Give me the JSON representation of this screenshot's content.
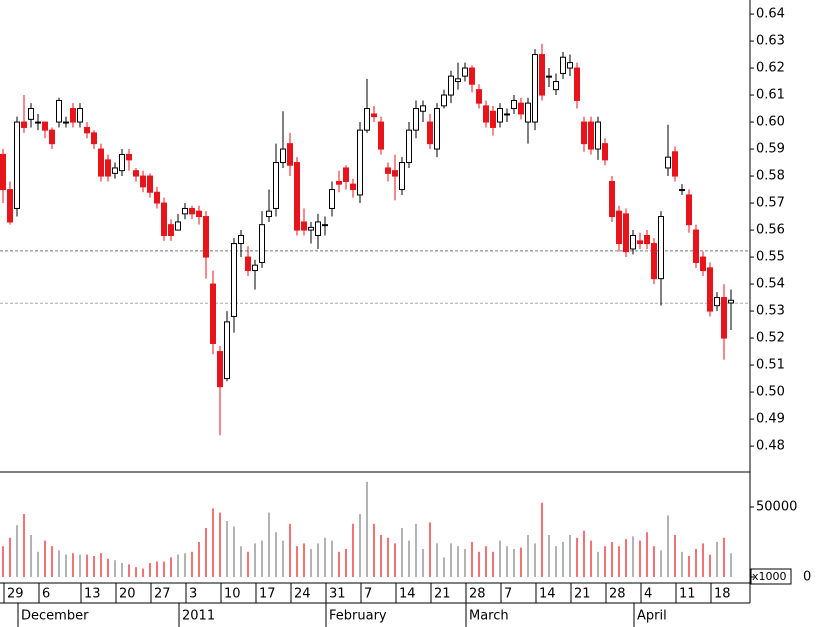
{
  "chart_data": {
    "type": "candlestick",
    "open": [
      0.588,
      0.575,
      0.568,
      0.6,
      0.601,
      0.6,
      0.6,
      0.597,
      0.6,
      0.6,
      0.605,
      0.6,
      0.598,
      0.596,
      0.59,
      0.586,
      0.581,
      0.582,
      0.588,
      0.582,
      0.58,
      0.58,
      0.574,
      0.57,
      0.562,
      0.56,
      0.566,
      0.568,
      0.567,
      0.565,
      0.54,
      0.515,
      0.505,
      0.528,
      0.555,
      0.55,
      0.545,
      0.548,
      0.565,
      0.568,
      0.585,
      0.592,
      0.585,
      0.563,
      0.56,
      0.558,
      0.562,
      0.568,
      0.578,
      0.583,
      0.577,
      0.573,
      0.597,
      0.603,
      0.6,
      0.583,
      0.582,
      0.575,
      0.585,
      0.597,
      0.604,
      0.6,
      0.59,
      0.606,
      0.61,
      0.615,
      0.617,
      0.62,
      0.612,
      0.606,
      0.604,
      0.6,
      0.603,
      0.605,
      0.607,
      0.6,
      0.6,
      0.625,
      0.617,
      0.612,
      0.618,
      0.62,
      0.62,
      0.6,
      0.6,
      0.59,
      0.592,
      0.578,
      0.567,
      0.566,
      0.553,
      0.556,
      0.558,
      0.555,
      0.542,
      0.583,
      0.589,
      0.575,
      0.573,
      0.56,
      0.55,
      0.546,
      0.532,
      0.535,
      0.533
    ],
    "high": [
      0.59,
      0.578,
      0.602,
      0.61,
      0.607,
      0.603,
      0.6,
      0.598,
      0.609,
      0.602,
      0.607,
      0.607,
      0.6,
      0.597,
      0.592,
      0.588,
      0.585,
      0.59,
      0.59,
      0.583,
      0.582,
      0.581,
      0.576,
      0.572,
      0.564,
      0.566,
      0.57,
      0.569,
      0.569,
      0.567,
      0.545,
      0.517,
      0.53,
      0.557,
      0.56,
      0.554,
      0.549,
      0.567,
      0.575,
      0.592,
      0.604,
      0.596,
      0.587,
      0.568,
      0.563,
      0.566,
      0.565,
      0.578,
      0.582,
      0.584,
      0.579,
      0.6,
      0.616,
      0.606,
      0.602,
      0.585,
      0.588,
      0.587,
      0.6,
      0.608,
      0.608,
      0.603,
      0.607,
      0.612,
      0.619,
      0.622,
      0.622,
      0.621,
      0.614,
      0.608,
      0.606,
      0.607,
      0.605,
      0.61,
      0.609,
      0.609,
      0.627,
      0.629,
      0.62,
      0.618,
      0.626,
      0.625,
      0.622,
      0.602,
      0.602,
      0.602,
      0.594,
      0.58,
      0.569,
      0.568,
      0.56,
      0.559,
      0.56,
      0.557,
      0.567,
      0.599,
      0.591,
      0.577,
      0.575,
      0.562,
      0.552,
      0.548,
      0.537,
      0.54,
      0.538
    ],
    "low": [
      0.57,
      0.562,
      0.565,
      0.596,
      0.598,
      0.597,
      0.594,
      0.59,
      0.598,
      0.598,
      0.598,
      0.598,
      0.594,
      0.59,
      0.578,
      0.578,
      0.579,
      0.58,
      0.582,
      0.578,
      0.574,
      0.572,
      0.568,
      0.556,
      0.556,
      0.56,
      0.564,
      0.564,
      0.562,
      0.542,
      0.514,
      0.484,
      0.504,
      0.522,
      0.55,
      0.543,
      0.538,
      0.546,
      0.563,
      0.565,
      0.583,
      0.58,
      0.558,
      0.558,
      0.555,
      0.553,
      0.558,
      0.565,
      0.574,
      0.575,
      0.572,
      0.57,
      0.596,
      0.6,
      0.588,
      0.578,
      0.571,
      0.573,
      0.583,
      0.594,
      0.6,
      0.59,
      0.587,
      0.605,
      0.607,
      0.612,
      0.615,
      0.611,
      0.605,
      0.598,
      0.595,
      0.598,
      0.6,
      0.603,
      0.601,
      0.592,
      0.597,
      0.608,
      0.613,
      0.61,
      0.616,
      0.617,
      0.605,
      0.589,
      0.588,
      0.586,
      0.584,
      0.563,
      0.552,
      0.55,
      0.551,
      0.553,
      0.553,
      0.54,
      0.532,
      0.58,
      0.578,
      0.573,
      0.559,
      0.546,
      0.543,
      0.528,
      0.53,
      0.512,
      0.523
    ],
    "close": [
      0.575,
      0.563,
      0.6,
      0.598,
      0.605,
      0.6,
      0.597,
      0.592,
      0.608,
      0.6,
      0.6,
      0.605,
      0.596,
      0.592,
      0.58,
      0.58,
      0.583,
      0.588,
      0.586,
      0.58,
      0.576,
      0.574,
      0.57,
      0.558,
      0.558,
      0.563,
      0.568,
      0.566,
      0.565,
      0.55,
      0.518,
      0.502,
      0.526,
      0.555,
      0.558,
      0.545,
      0.547,
      0.562,
      0.567,
      0.585,
      0.59,
      0.584,
      0.56,
      0.56,
      0.561,
      0.563,
      0.562,
      0.575,
      0.577,
      0.578,
      0.575,
      0.597,
      0.605,
      0.602,
      0.59,
      0.581,
      0.58,
      0.585,
      0.597,
      0.605,
      0.606,
      0.592,
      0.605,
      0.61,
      0.617,
      0.616,
      0.62,
      0.614,
      0.607,
      0.6,
      0.598,
      0.605,
      0.603,
      0.608,
      0.603,
      0.607,
      0.625,
      0.61,
      0.617,
      0.615,
      0.624,
      0.622,
      0.608,
      0.592,
      0.59,
      0.6,
      0.586,
      0.565,
      0.555,
      0.552,
      0.558,
      0.555,
      0.555,
      0.542,
      0.565,
      0.587,
      0.58,
      0.575,
      0.562,
      0.548,
      0.545,
      0.53,
      0.535,
      0.52,
      0.534
    ],
    "volume": [
      22000,
      28000,
      37000,
      45000,
      30000,
      18000,
      26000,
      22000,
      19000,
      16000,
      17000,
      16000,
      16000,
      15000,
      17000,
      13000,
      12000,
      10000,
      9000,
      7000,
      6000,
      10000,
      11000,
      11000,
      14000,
      16000,
      17000,
      18000,
      25000,
      35000,
      49000,
      46000,
      40000,
      36000,
      22000,
      18000,
      24000,
      26000,
      46000,
      32000,
      26000,
      38000,
      22000,
      24000,
      20000,
      24000,
      28000,
      26000,
      18000,
      20000,
      38000,
      45000,
      68000,
      38000,
      30000,
      28000,
      24000,
      35000,
      26000,
      38000,
      20000,
      39000,
      24000,
      14000,
      24000,
      22000,
      20000,
      25000,
      18000,
      22000,
      18000,
      26000,
      22000,
      20000,
      21000,
      30000,
      24000,
      53000,
      30000,
      22000,
      25000,
      30000,
      28000,
      33000,
      26000,
      18000,
      22000,
      25000,
      22000,
      27000,
      29000,
      26000,
      32000,
      22000,
      19000,
      44000,
      30000,
      18000,
      15000,
      20000,
      24000,
      16000,
      25000,
      28000,
      17000
    ],
    "up_color": "#ffffff",
    "down_color": "#e8141c",
    "volume_up_color": "#808080",
    "ylim": [
      0.4704,
      0.6452
    ],
    "yticks": [
      0.48,
      0.49,
      {
        "value": 0.5,
        "label": "0.50"
      },
      0.51,
      0.52,
      0.53,
      0.54,
      0.55,
      0.56,
      0.57,
      0.58,
      0.59,
      {
        "value": 0.6,
        "label": "0.60"
      },
      0.61,
      0.62,
      0.63,
      0.64
    ],
    "y2lim": [
      -4300,
      75000
    ],
    "y2ticks": [
      0,
      50000
    ],
    "volume_unit": "x1000",
    "hlines": [
      0.5523,
      0.5329
    ],
    "xticks": [
      {
        "value": 0,
        "label": "29"
      },
      {
        "value": 5,
        "label": "6"
      },
      {
        "value": 11,
        "label": "13"
      },
      {
        "value": 16,
        "label": "20"
      },
      {
        "value": 21,
        "label": "27"
      },
      {
        "value": 26,
        "label": "3"
      },
      {
        "value": 31,
        "label": "10"
      },
      {
        "value": 36,
        "label": "17"
      },
      {
        "value": 41,
        "label": "24"
      },
      {
        "value": 46,
        "label": "31"
      },
      {
        "value": 51,
        "label": "7"
      },
      {
        "value": 56,
        "label": "14"
      },
      {
        "value": 61,
        "label": "21"
      },
      {
        "value": 66,
        "label": "28"
      },
      {
        "value": 71,
        "label": "7"
      },
      {
        "value": 76,
        "label": "14"
      },
      {
        "value": 81,
        "label": "21"
      },
      {
        "value": 86,
        "label": "28"
      },
      {
        "value": 91,
        "label": "4"
      },
      {
        "value": 96,
        "label": "11"
      },
      {
        "value": 101,
        "label": "18"
      }
    ],
    "months": [
      {
        "value": 2,
        "label": "December"
      },
      {
        "value": 25,
        "label": "2011"
      },
      {
        "value": 46,
        "label": "February"
      },
      {
        "value": 66,
        "label": "March"
      },
      {
        "value": 90,
        "label": "April"
      }
    ]
  }
}
